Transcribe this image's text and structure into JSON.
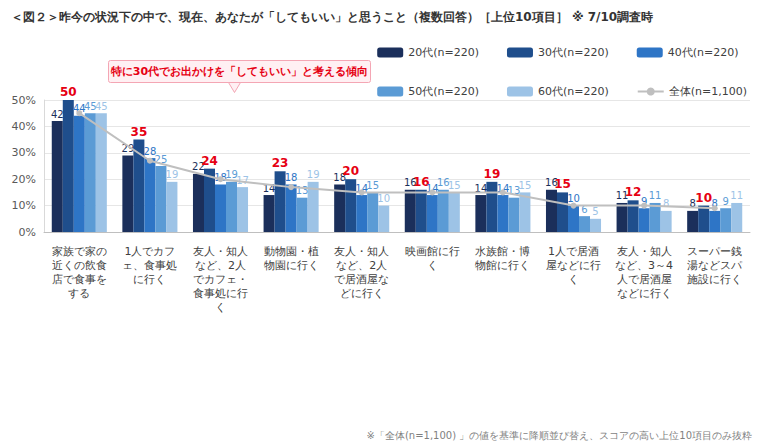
{
  "chart_data": {
    "type": "bar",
    "title": "＜図２＞昨今の状況下の中で、現在、あなたが「してもいい」と思うこと（複数回答）［上位10項目］ ※ 7/10調査時",
    "annotation": "特に30代でお出かけを「してもいい」と考える傾向",
    "footnote": "※「全体(n=1,100) 」の値を基準に降順並び替え、スコアの高い上位10項目のみ抜粋",
    "categories": [
      "家族で家の近くの飲食店で食事をする",
      "1人でカフェ、食事処に行く",
      "友人・知人など、2人でカフェ・食事処に行く",
      "動物園・植物園に行く",
      "友人・知人など、2人で居酒屋などに行く",
      "映画館に行く",
      "水族館・博物館に行く",
      "1人で居酒屋などに行く",
      "友人・知人など、3～4人で居酒屋などに行く",
      "スーパー銭湯などスパ施設に行く"
    ],
    "series": [
      {
        "name": "20代(n=220)",
        "color": "#1b2f5b",
        "values": [
          42,
          29,
          22,
          14,
          18,
          16,
          14,
          16,
          11,
          8
        ]
      },
      {
        "name": "30代(n=220)",
        "color": "#1f4e8c",
        "values": [
          50,
          35,
          24,
          23,
          20,
          16,
          19,
          15,
          12,
          10
        ]
      },
      {
        "name": "40代(n=220)",
        "color": "#2e75c6",
        "values": [
          44,
          28,
          18,
          18,
          14,
          14,
          14,
          10,
          9,
          8
        ]
      },
      {
        "name": "50代(n=220)",
        "color": "#5b9bd5",
        "values": [
          45,
          25,
          19,
          13,
          15,
          16,
          13,
          6,
          11,
          9
        ]
      },
      {
        "name": "60代(n=220)",
        "color": "#9dc3e6",
        "values": [
          45,
          19,
          17,
          19,
          10,
          15,
          15,
          5,
          8,
          11
        ]
      },
      {
        "name": "全体(n=1,100)",
        "color": "#bfbfbf",
        "type": "line",
        "marker": "circle",
        "line_style": "solid",
        "data_labels": false,
        "values": [
          45,
          27,
          20,
          17,
          15,
          15,
          15,
          10,
          10,
          9
        ]
      }
    ],
    "ylim": [
      0,
      50
    ],
    "yticks": [
      {
        "value": 0,
        "label": "0%"
      },
      {
        "value": 10,
        "label": "10%"
      },
      {
        "value": 20,
        "label": "20%"
      },
      {
        "value": 30,
        "label": "30%"
      },
      {
        "value": 40,
        "label": "40%"
      },
      {
        "value": 50,
        "label": "50%"
      }
    ],
    "grid": true,
    "legend": "top-right",
    "data_labels": true
  }
}
